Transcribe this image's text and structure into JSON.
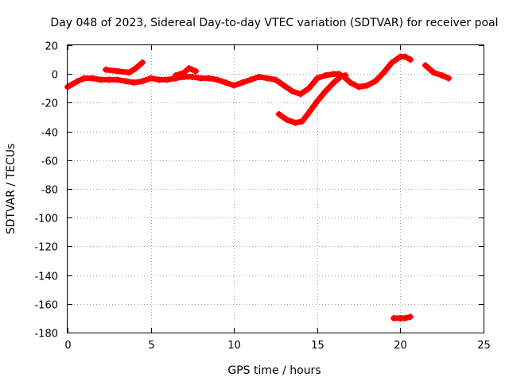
{
  "chart_data": {
    "type": "scatter",
    "title": "Day 048 of 2023, Sidereal Day-to-day VTEC variation (SDTVAR) for receiver poal",
    "xlabel": "GPS time / hours",
    "ylabel": "SDTVAR / TECUs",
    "xlim": [
      0,
      25
    ],
    "ylim": [
      -180,
      20
    ],
    "xticks": [
      0,
      5,
      10,
      15,
      20,
      25
    ],
    "yticks": [
      20,
      0,
      -20,
      -40,
      -60,
      -80,
      -100,
      -120,
      -140,
      -160,
      -180
    ],
    "grid": true,
    "series": [
      {
        "name": "SDTVAR",
        "color": "#ff0000",
        "marker": "+",
        "segments": [
          [
            [
              0.0,
              -9
            ],
            [
              0.3,
              -7
            ],
            [
              0.6,
              -5
            ],
            [
              1.0,
              -3
            ],
            [
              1.5,
              -3
            ],
            [
              2.0,
              -4
            ],
            [
              2.5,
              -4
            ],
            [
              3.0,
              -4
            ],
            [
              3.5,
              -5
            ],
            [
              4.0,
              -6
            ],
            [
              4.5,
              -5
            ],
            [
              5.0,
              -3
            ],
            [
              5.5,
              -4
            ],
            [
              6.0,
              -4
            ],
            [
              6.5,
              -3
            ],
            [
              7.0,
              -2
            ],
            [
              7.5,
              -2
            ],
            [
              8.0,
              -3
            ],
            [
              8.5,
              -3
            ],
            [
              9.0,
              -4
            ],
            [
              9.5,
              -6
            ],
            [
              10.0,
              -8
            ],
            [
              10.5,
              -6
            ],
            [
              11.0,
              -4
            ],
            [
              11.5,
              -2
            ],
            [
              12.0,
              -3
            ],
            [
              12.5,
              -4
            ],
            [
              13.0,
              -8
            ],
            [
              13.5,
              -12
            ],
            [
              14.0,
              -14
            ],
            [
              14.5,
              -10
            ],
            [
              15.0,
              -3
            ],
            [
              15.5,
              -1
            ],
            [
              16.0,
              0
            ],
            [
              16.3,
              0
            ],
            [
              16.6,
              -2
            ],
            [
              17.0,
              -6
            ],
            [
              17.5,
              -9
            ],
            [
              18.0,
              -8
            ],
            [
              18.5,
              -5
            ],
            [
              19.0,
              1
            ],
            [
              19.5,
              8
            ],
            [
              20.0,
              12
            ],
            [
              20.3,
              12
            ],
            [
              20.6,
              10
            ]
          ],
          [
            [
              2.3,
              3
            ],
            [
              3.0,
              2
            ],
            [
              3.7,
              1
            ],
            [
              4.1,
              4
            ],
            [
              4.5,
              8
            ]
          ],
          [
            [
              6.5,
              -1
            ],
            [
              7.0,
              1
            ],
            [
              7.3,
              4
            ],
            [
              7.7,
              2
            ]
          ],
          [
            [
              12.7,
              -28
            ],
            [
              13.2,
              -32
            ],
            [
              13.7,
              -34
            ],
            [
              14.1,
              -33
            ],
            [
              14.5,
              -27
            ],
            [
              15.0,
              -19
            ],
            [
              15.5,
              -12
            ],
            [
              16.0,
              -6
            ],
            [
              16.4,
              -2
            ],
            [
              16.7,
              -1
            ]
          ],
          [
            [
              19.6,
              -170
            ],
            [
              20.0,
              -170
            ],
            [
              20.3,
              -170
            ],
            [
              20.6,
              -169
            ]
          ],
          [
            [
              21.5,
              6
            ],
            [
              22.0,
              1
            ],
            [
              22.5,
              -1
            ],
            [
              22.9,
              -3
            ]
          ]
        ]
      }
    ]
  }
}
